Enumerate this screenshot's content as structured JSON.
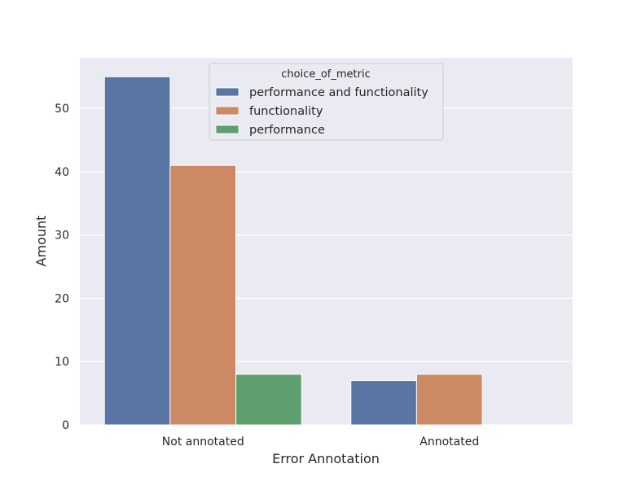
{
  "chart_data": {
    "type": "bar",
    "xlabel": "Error Annotation",
    "ylabel": "Amount",
    "categories": [
      "Not annotated",
      "Annotated"
    ],
    "ylim": [
      0,
      58
    ],
    "yticks": [
      0,
      10,
      20,
      30,
      40,
      50
    ],
    "grid": true,
    "legend": {
      "title": "choice_of_metric",
      "placement": "top-center"
    },
    "series": [
      {
        "name": "performance and functionality",
        "color": "#5875a4",
        "values": [
          55,
          7
        ]
      },
      {
        "name": "functionality",
        "color": "#cc8963",
        "values": [
          41,
          8
        ]
      },
      {
        "name": "performance",
        "color": "#5f9e6e",
        "values": [
          8,
          0
        ]
      }
    ]
  }
}
